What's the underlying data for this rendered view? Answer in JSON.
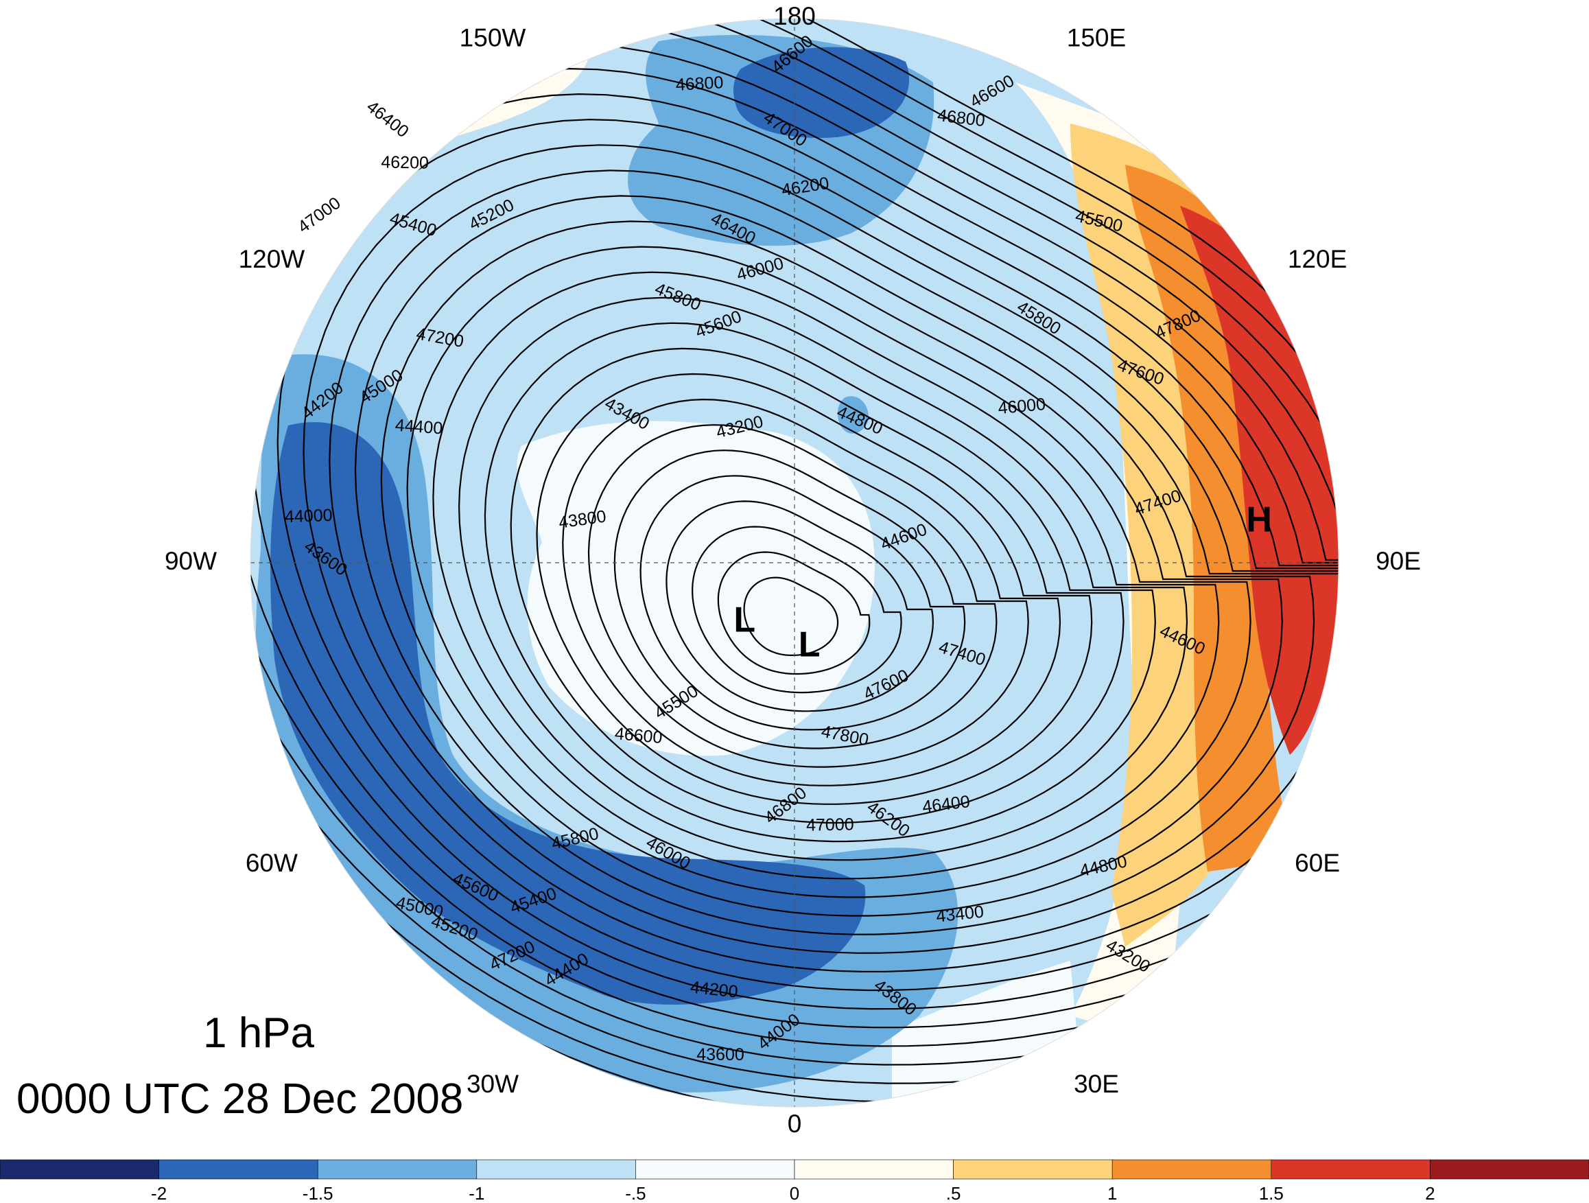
{
  "title": {
    "level": "1 hPa",
    "time": "0000 UTC 28 Dec 2008"
  },
  "longitude_labels": [
    {
      "lon": 180,
      "text": "180"
    },
    {
      "lon": -150,
      "text": "150W"
    },
    {
      "lon": 150,
      "text": "150E"
    },
    {
      "lon": -120,
      "text": "120W"
    },
    {
      "lon": 120,
      "text": "120E"
    },
    {
      "lon": -90,
      "text": "90W"
    },
    {
      "lon": 90,
      "text": "90E"
    },
    {
      "lon": -60,
      "text": "60W"
    },
    {
      "lon": 60,
      "text": "60E"
    },
    {
      "lon": -30,
      "text": "30W"
    },
    {
      "lon": 30,
      "text": "30E"
    },
    {
      "lon": 0,
      "text": "0"
    }
  ],
  "pressure_centers": [
    {
      "symbol": "L",
      "lon": -40,
      "lat": 80
    },
    {
      "symbol": "L",
      "lon": 10,
      "lat": 79
    },
    {
      "symbol": "H",
      "lon": 95,
      "lat": 30
    }
  ],
  "contour_labels": [
    "46600",
    "46800",
    "47000",
    "46200",
    "46400",
    "46000",
    "45800",
    "45600",
    "45400",
    "45200",
    "47200",
    "45000",
    "44400",
    "44200",
    "44000",
    "43600",
    "43800",
    "43400",
    "43200",
    "44800",
    "44600",
    "47400",
    "47600",
    "47800",
    "45500"
  ],
  "colorbar": {
    "ticks": [
      "-2",
      "-1.5",
      "-1",
      "-.5",
      "0",
      ".5",
      "1",
      "1.5",
      "2"
    ],
    "colors": [
      "#1a2a6c",
      "#2c66b6",
      "#6aaee0",
      "#bfe1f6",
      "#f5fafd",
      "#fffbf0",
      "#fcd27a",
      "#f58e2e",
      "#dc3628",
      "#9a1b1e"
    ]
  },
  "anomaly_field_description_levels": {
    "deep_blue": "#2c66b6",
    "mid_blue": "#6aaee0",
    "light_blue": "#bfe1f6",
    "near_white": "#f5fafd",
    "cream": "#fffbf0",
    "yellow": "#fcd27a",
    "orange": "#f58e2e",
    "red": "#dc3628"
  }
}
